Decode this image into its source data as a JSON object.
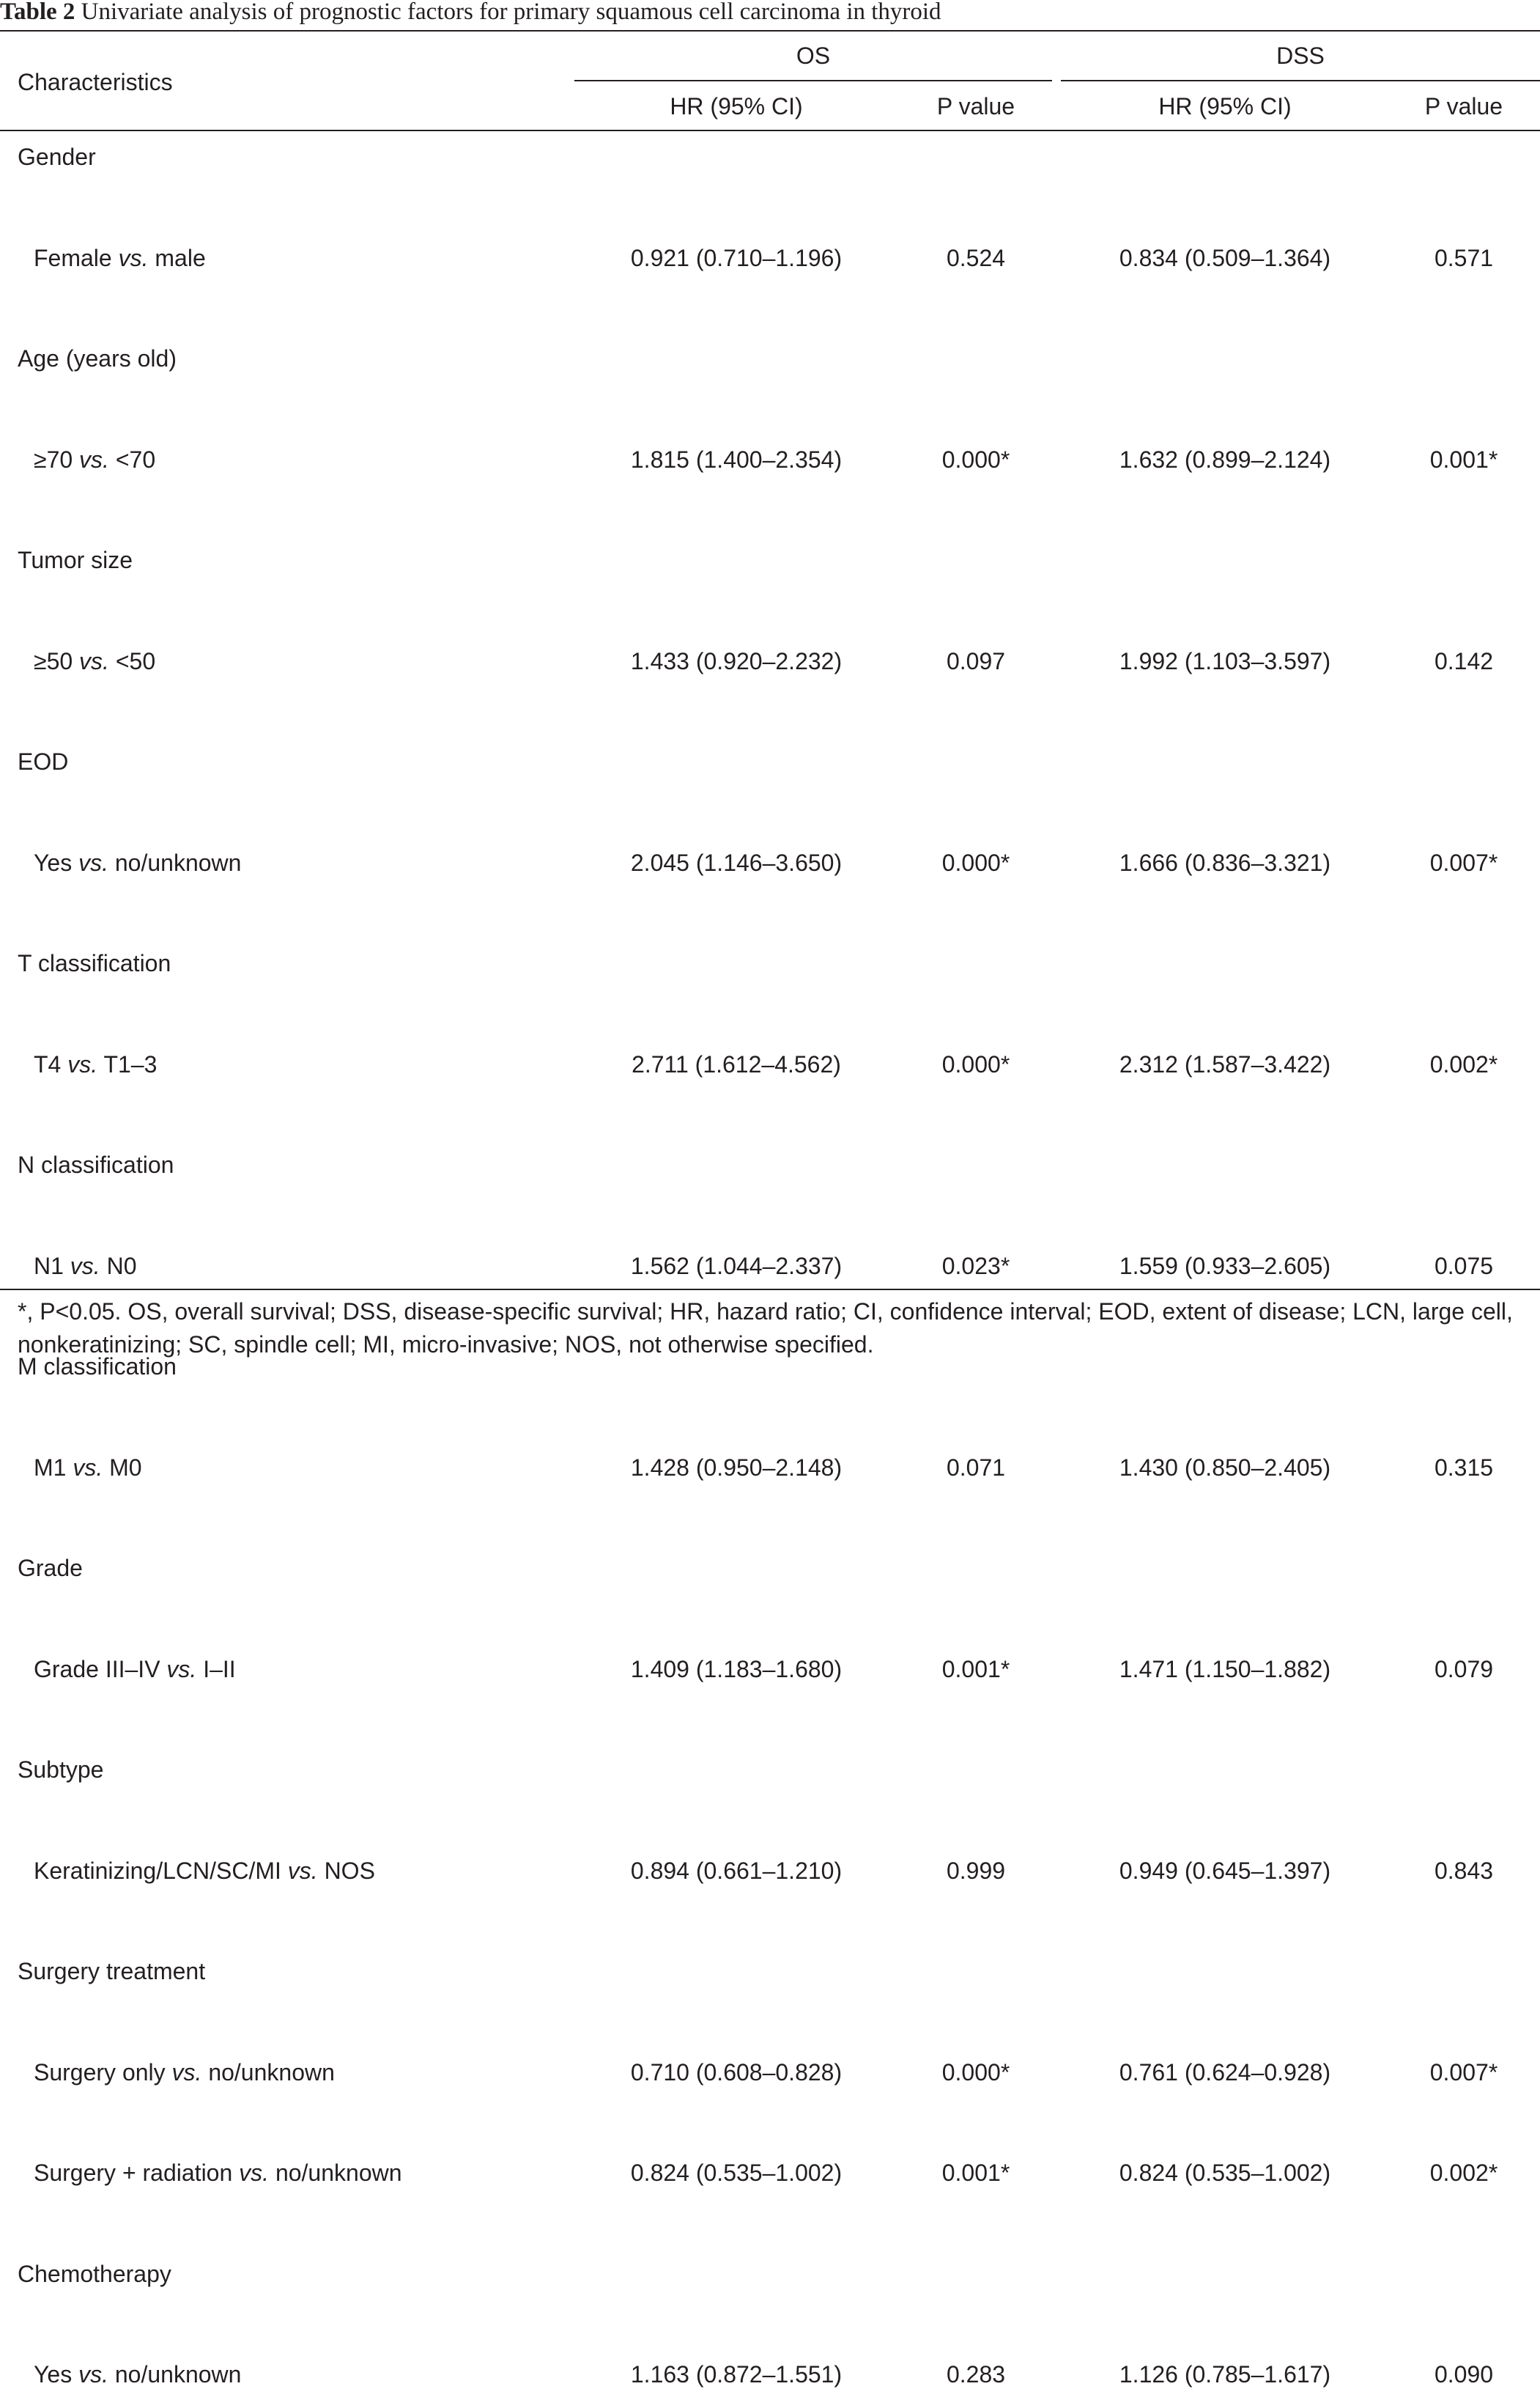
{
  "caption": {
    "label": "Table 2",
    "text": "Univariate analysis of prognostic factors for primary squamous cell carcinoma in thyroid"
  },
  "header": {
    "characteristics": "Characteristics",
    "group_os": "OS",
    "group_dss": "DSS",
    "hr": "HR (95% CI)",
    "p": "P value"
  },
  "rows": [
    {
      "type": "group",
      "label": "Gender"
    },
    {
      "type": "item",
      "pre": "Female ",
      "vs": "vs.",
      "post": " male",
      "os_hr": "0.921 (0.710–1.196)",
      "os_p": "0.524",
      "dss_hr": "0.834 (0.509–1.364)",
      "dss_p": "0.571"
    },
    {
      "type": "group",
      "label": "Age (years old)"
    },
    {
      "type": "item",
      "pre": "≥70 ",
      "vs": "vs.",
      "post": " <70",
      "os_hr": "1.815 (1.400–2.354)",
      "os_p": "0.000*",
      "dss_hr": "1.632 (0.899–2.124)",
      "dss_p": "0.001*"
    },
    {
      "type": "group",
      "label": "Tumor size"
    },
    {
      "type": "item",
      "pre": "≥50 ",
      "vs": "vs.",
      "post": " <50",
      "os_hr": "1.433 (0.920–2.232)",
      "os_p": "0.097",
      "dss_hr": "1.992 (1.103–3.597)",
      "dss_p": "0.142"
    },
    {
      "type": "group",
      "label": "EOD"
    },
    {
      "type": "item",
      "pre": "Yes ",
      "vs": "vs.",
      "post": " no/unknown",
      "os_hr": "2.045 (1.146–3.650)",
      "os_p": "0.000*",
      "dss_hr": "1.666 (0.836–3.321)",
      "dss_p": "0.007*"
    },
    {
      "type": "group",
      "label": "T classification"
    },
    {
      "type": "item",
      "pre": "T4 ",
      "vs": "vs.",
      "post": " T1–3",
      "os_hr": "2.711 (1.612–4.562)",
      "os_p": "0.000*",
      "dss_hr": "2.312 (1.587–3.422)",
      "dss_p": "0.002*"
    },
    {
      "type": "group",
      "label": "N classification"
    },
    {
      "type": "item",
      "pre": "N1 ",
      "vs": "vs.",
      "post": " N0",
      "os_hr": "1.562 (1.044–2.337)",
      "os_p": "0.023*",
      "dss_hr": "1.559 (0.933–2.605)",
      "dss_p": "0.075"
    },
    {
      "type": "group",
      "label": "M classification"
    },
    {
      "type": "item",
      "pre": "M1 ",
      "vs": "vs.",
      "post": " M0",
      "os_hr": "1.428 (0.950–2.148)",
      "os_p": "0.071",
      "dss_hr": "1.430 (0.850–2.405)",
      "dss_p": "0.315"
    },
    {
      "type": "group",
      "label": "Grade"
    },
    {
      "type": "item",
      "pre": "Grade III–IV ",
      "vs": "vs.",
      "post": " I–II",
      "os_hr": "1.409 (1.183–1.680)",
      "os_p": "0.001*",
      "dss_hr": "1.471 (1.150–1.882)",
      "dss_p": "0.079"
    },
    {
      "type": "group",
      "label": "Subtype"
    },
    {
      "type": "item",
      "pre": "Keratinizing/LCN/SC/MI ",
      "vs": "vs.",
      "post": " NOS",
      "os_hr": "0.894 (0.661–1.210)",
      "os_p": "0.999",
      "dss_hr": "0.949 (0.645–1.397)",
      "dss_p": "0.843"
    },
    {
      "type": "group",
      "label": "Surgery treatment"
    },
    {
      "type": "item",
      "pre": "Surgery only ",
      "vs": "vs.",
      "post": " no/unknown",
      "os_hr": "0.710 (0.608–0.828)",
      "os_p": "0.000*",
      "dss_hr": "0.761 (0.624–0.928)",
      "dss_p": "0.007*"
    },
    {
      "type": "item",
      "pre": "Surgery + radiation ",
      "vs": "vs.",
      "post": " no/unknown",
      "os_hr": "0.824 (0.535–1.002)",
      "os_p": "0.001*",
      "dss_hr": "0.824 (0.535–1.002)",
      "dss_p": "0.002*"
    },
    {
      "type": "group",
      "label": "Chemotherapy"
    },
    {
      "type": "item",
      "pre": "Yes ",
      "vs": "vs.",
      "post": " no/unknown",
      "os_hr": "1.163 (0.872–1.551)",
      "os_p": "0.283",
      "dss_hr": "1.126 (0.785–1.617)",
      "dss_p": "0.090"
    }
  ],
  "footnote": "*, P<0.05. OS, overall survival; DSS, disease-specific survival; HR, hazard ratio; CI, confidence interval; EOD, extent of disease; LCN, large cell, nonkeratinizing; SC, spindle cell; MI, micro-invasive; NOS, not otherwise specified."
}
